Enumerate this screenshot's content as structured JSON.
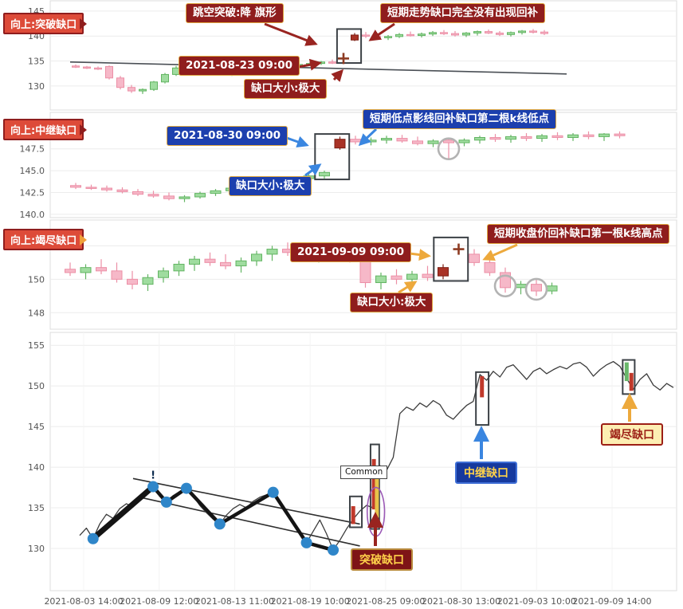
{
  "colors": {
    "bull_fill": "#9fdc9f",
    "bull_stroke": "#62b462",
    "bear_fill": "#f6b8c8",
    "bear_stroke": "#ec8fa6",
    "gap_candle": "#a93226",
    "gap_candle_stroke": "#7c1d12",
    "cross": "#8d3b22",
    "annotation_red": "#8f1d1d",
    "annotation_blue": "#1c3fae",
    "annotation_orange": "#eda93c",
    "line": "#3c3c3c",
    "dot": "#2f86c9",
    "grid": "#ececec",
    "axis_text": "#555555"
  },
  "chart_data": [
    {
      "type": "candlestick",
      "panel_tag": "向上:突破缺口",
      "ylim": [
        125.5,
        146.9
      ],
      "yticks": [
        145,
        140,
        135,
        130
      ],
      "ytick_labels": [
        "145",
        "140",
        "135",
        "130"
      ],
      "candles": [
        [
          134.0,
          134.3,
          133.6,
          133.8
        ],
        [
          133.8,
          134.0,
          133.4,
          133.6
        ],
        [
          133.6,
          133.9,
          133.2,
          133.4
        ],
        [
          133.9,
          134.1,
          131.3,
          131.6
        ],
        [
          131.6,
          132.0,
          129.3,
          129.7
        ],
        [
          129.7,
          130.2,
          128.6,
          129.0
        ],
        [
          129.0,
          129.5,
          128.4,
          129.3
        ],
        [
          129.3,
          131.0,
          129.0,
          130.8
        ],
        [
          130.8,
          132.6,
          130.5,
          132.3
        ],
        [
          132.3,
          134.0,
          132.0,
          133.6
        ],
        [
          133.6,
          134.2,
          133.2,
          133.9
        ],
        [
          133.9,
          134.1,
          133.0,
          133.2
        ],
        [
          133.2,
          133.6,
          132.6,
          132.9
        ],
        [
          132.9,
          133.3,
          132.2,
          132.5
        ],
        [
          132.5,
          133.0,
          132.0,
          132.8
        ],
        [
          132.8,
          133.5,
          132.5,
          133.2
        ],
        [
          133.2,
          133.8,
          132.9,
          133.5
        ],
        [
          133.5,
          134.0,
          133.1,
          133.3
        ],
        [
          133.3,
          133.9,
          133.0,
          133.7
        ],
        [
          133.7,
          134.4,
          133.4,
          134.1
        ],
        [
          134.1,
          134.6,
          133.8,
          134.3
        ],
        [
          134.3,
          134.8,
          134.0,
          134.5
        ],
        [
          134.5,
          135.0,
          134.2,
          134.8
        ],
        [
          134.8,
          135.3,
          134.4,
          134.6
        ],
        [
          135.4,
          135.9,
          135.1,
          135.5
        ],
        [
          139.2,
          140.6,
          139.0,
          140.2
        ],
        [
          140.2,
          140.8,
          139.6,
          140.0
        ],
        [
          140.0,
          140.5,
          139.4,
          139.7
        ],
        [
          139.7,
          140.2,
          139.2,
          139.9
        ],
        [
          139.9,
          140.6,
          139.6,
          140.3
        ],
        [
          140.3,
          140.9,
          139.9,
          140.1
        ],
        [
          140.1,
          140.7,
          139.7,
          140.4
        ],
        [
          140.4,
          141.0,
          140.0,
          140.7
        ],
        [
          140.7,
          141.2,
          140.2,
          140.5
        ],
        [
          140.5,
          141.0,
          139.9,
          140.2
        ],
        [
          140.2,
          140.8,
          139.8,
          140.6
        ],
        [
          140.6,
          141.1,
          140.1,
          140.9
        ],
        [
          140.9,
          141.3,
          140.4,
          140.6
        ],
        [
          140.6,
          141.0,
          140.0,
          140.3
        ],
        [
          140.3,
          140.9,
          139.9,
          140.7
        ],
        [
          140.7,
          141.2,
          140.3,
          141.0
        ],
        [
          141.0,
          141.4,
          140.5,
          140.8
        ],
        [
          140.8,
          141.2,
          140.2,
          140.5
        ]
      ],
      "highlight_index": 25,
      "hidden_indices": [
        24
      ],
      "cross_markers": [
        {
          "i": 24,
          "v": 135.5
        }
      ],
      "gap_box": {
        "i1": 24,
        "i2": 25,
        "v1": 134.6,
        "v2": 141.4
      },
      "trend_line": {
        "i1": -0.5,
        "v1": 134.8,
        "i2": 44,
        "v2": 132.4
      },
      "annotations": {
        "pattern": "跳空突破:降 旗形",
        "note": "短期走势缺口完全没有出现回补",
        "timestamp": "2021-08-23 09:00",
        "gap_size": "缺口大小:极大"
      }
    },
    {
      "type": "candlestick",
      "panel_tag": "向上:中继缺口",
      "ylim": [
        139.9,
        151.4
      ],
      "yticks": [
        147.5,
        145.0,
        142.5,
        140.0
      ],
      "ytick_labels": [
        "147.5",
        "145.0",
        "142.5",
        "140.0"
      ],
      "candles": [
        [
          143.3,
          143.6,
          142.9,
          143.1
        ],
        [
          143.1,
          143.4,
          142.8,
          143.0
        ],
        [
          143.0,
          143.3,
          142.6,
          142.8
        ],
        [
          142.8,
          143.1,
          142.4,
          142.6
        ],
        [
          142.6,
          142.9,
          142.1,
          142.3
        ],
        [
          142.3,
          142.7,
          141.9,
          142.1
        ],
        [
          142.1,
          142.5,
          141.6,
          141.8
        ],
        [
          141.8,
          142.2,
          141.4,
          142.0
        ],
        [
          142.0,
          142.6,
          141.8,
          142.4
        ],
        [
          142.4,
          142.9,
          142.1,
          142.7
        ],
        [
          142.7,
          143.2,
          142.4,
          143.0
        ],
        [
          143.0,
          143.5,
          142.7,
          143.3
        ],
        [
          143.3,
          143.8,
          143.0,
          143.6
        ],
        [
          143.6,
          144.1,
          143.3,
          143.9
        ],
        [
          143.9,
          144.3,
          143.5,
          144.1
        ],
        [
          144.1,
          144.6,
          143.8,
          144.4
        ],
        [
          144.4,
          145.0,
          144.1,
          144.8
        ],
        [
          147.6,
          148.9,
          147.4,
          148.6
        ],
        [
          148.6,
          149.0,
          148.0,
          148.3
        ],
        [
          148.3,
          148.8,
          147.9,
          148.5
        ],
        [
          148.5,
          149.0,
          148.1,
          148.7
        ],
        [
          148.7,
          149.1,
          148.2,
          148.4
        ],
        [
          148.4,
          148.9,
          147.9,
          148.1
        ],
        [
          148.1,
          148.6,
          147.7,
          148.4
        ],
        [
          148.5,
          148.8,
          146.4,
          148.2
        ],
        [
          148.2,
          148.7,
          147.8,
          148.5
        ],
        [
          148.5,
          149.0,
          148.1,
          148.8
        ],
        [
          148.8,
          149.2,
          148.3,
          148.6
        ],
        [
          148.6,
          149.1,
          148.2,
          148.9
        ],
        [
          148.9,
          149.3,
          148.4,
          148.7
        ],
        [
          148.7,
          149.2,
          148.3,
          149.0
        ],
        [
          149.0,
          149.4,
          148.5,
          148.8
        ],
        [
          148.8,
          149.3,
          148.4,
          149.1
        ],
        [
          149.1,
          149.5,
          148.6,
          148.9
        ],
        [
          148.9,
          149.3,
          148.4,
          149.2
        ],
        [
          149.2,
          149.5,
          148.7,
          149.0
        ]
      ],
      "highlight_index": 17,
      "gap_box": {
        "i1": 16,
        "i2": 17,
        "v1": 144.0,
        "v2": 149.2
      },
      "circles": [
        {
          "i": 24,
          "v": 147.5
        }
      ],
      "annotations": {
        "note": "短期低点影线回补缺口第二根k线低点",
        "timestamp": "2021-08-30 09:00",
        "gap_size": "缺口大小:极大"
      }
    },
    {
      "type": "candlestick",
      "panel_tag": "向上:竭尽缺口",
      "ylim": [
        147.3,
        153.4
      ],
      "yticks": [
        152,
        150,
        148
      ],
      "ytick_labels": [
        "152",
        "150",
        "148"
      ],
      "candles": [
        [
          150.6,
          151.0,
          150.2,
          150.4
        ],
        [
          150.4,
          150.9,
          150.0,
          150.7
        ],
        [
          150.7,
          151.2,
          150.3,
          150.5
        ],
        [
          150.5,
          151.0,
          149.8,
          150.0
        ],
        [
          150.0,
          150.5,
          149.4,
          149.7
        ],
        [
          149.7,
          150.3,
          149.3,
          150.1
        ],
        [
          150.1,
          150.7,
          149.8,
          150.5
        ],
        [
          150.5,
          151.1,
          150.2,
          150.9
        ],
        [
          150.9,
          151.4,
          150.5,
          151.2
        ],
        [
          151.2,
          151.6,
          150.8,
          151.0
        ],
        [
          151.0,
          151.5,
          150.6,
          150.8
        ],
        [
          150.8,
          151.3,
          150.4,
          151.1
        ],
        [
          151.1,
          151.7,
          150.8,
          151.5
        ],
        [
          151.5,
          152.0,
          151.1,
          151.8
        ],
        [
          151.8,
          152.2,
          151.4,
          151.6
        ],
        [
          151.6,
          152.1,
          151.2,
          151.4
        ],
        [
          151.4,
          151.9,
          151.0,
          151.7
        ],
        [
          151.7,
          152.1,
          151.3,
          151.5
        ],
        [
          151.5,
          152.0,
          151.0,
          151.2
        ],
        [
          151.2,
          151.5,
          149.5,
          149.8
        ],
        [
          149.8,
          150.4,
          149.4,
          150.2
        ],
        [
          150.2,
          150.6,
          149.7,
          150.0
        ],
        [
          150.0,
          150.5,
          149.6,
          150.3
        ],
        [
          150.3,
          150.8,
          149.9,
          150.1
        ],
        [
          150.2,
          150.9,
          150.0,
          150.7
        ],
        [
          151.8,
          152.2,
          151.6,
          151.8
        ],
        [
          151.5,
          151.8,
          150.8,
          151.0
        ],
        [
          151.0,
          151.3,
          150.2,
          150.4
        ],
        [
          150.4,
          150.7,
          149.2,
          149.5
        ],
        [
          149.5,
          149.9,
          149.1,
          149.7
        ],
        [
          149.7,
          150.0,
          149.0,
          149.3
        ],
        [
          149.3,
          149.8,
          149.1,
          149.6
        ]
      ],
      "highlight_index": 24,
      "hidden_indices": [
        25
      ],
      "cross_markers": [
        {
          "i": 25,
          "v": 151.8
        }
      ],
      "gap_box": {
        "i1": 24,
        "i2": 25,
        "v1": 149.9,
        "v2": 152.5
      },
      "circles": [
        {
          "i": 28,
          "v": 149.6
        },
        {
          "i": 30,
          "v": 149.4
        }
      ],
      "annotations": {
        "note": "短期收盘价回补缺口第一根k线高点",
        "timestamp": "2021-09-09 09:00",
        "gap_size": "缺口大小:极大"
      }
    },
    {
      "type": "line",
      "ylim": [
        124.8,
        156.0
      ],
      "yticks": [
        155,
        150,
        145,
        140,
        135,
        130
      ],
      "ytick_labels": [
        "155",
        "150",
        "145",
        "140",
        "135",
        "130"
      ],
      "x_labels": [
        "2021-08-03 14:00",
        "2021-08-09 12:00",
        "2021-08-13 11:00",
        "2021-08-19 10:00",
        "2021-08-25 09:00",
        "2021-08-30 13:00",
        "2021-09-03 10:00",
        "2021-09-09 14:00"
      ],
      "values": [
        131.6,
        132.5,
        131.2,
        133.0,
        134.2,
        133.7,
        134.9,
        135.5,
        135.1,
        136.2,
        137.0,
        137.6,
        136.4,
        135.7,
        136.5,
        137.0,
        137.4,
        136.5,
        135.3,
        134.4,
        133.6,
        133.0,
        134.1,
        134.9,
        135.4,
        135.0,
        135.8,
        136.3,
        136.6,
        136.9,
        135.5,
        134.3,
        133.2,
        131.9,
        130.7,
        132.1,
        133.5,
        131.8,
        129.8,
        131.0,
        132.4,
        133.6,
        134.6,
        135.3,
        135.0,
        140.2,
        139.6,
        141.2,
        146.6,
        147.4,
        147.0,
        147.9,
        147.4,
        148.2,
        147.7,
        146.4,
        145.9,
        146.8,
        147.6,
        148.1,
        151.4,
        150.7,
        151.8,
        151.1,
        152.3,
        152.6,
        151.7,
        150.8,
        151.8,
        152.2,
        151.5,
        152.0,
        152.4,
        152.1,
        152.7,
        152.9,
        152.3,
        151.2,
        152.0,
        152.6,
        153.0,
        152.4,
        150.9,
        149.6,
        150.8,
        151.5,
        150.1,
        149.5,
        150.3,
        149.8
      ],
      "dots": [
        2,
        11,
        13,
        16,
        21,
        29,
        34,
        38
      ],
      "alert_dot": 11,
      "alert_glyph": "!",
      "thick_segments": [
        [
          2,
          11
        ],
        [
          11,
          13
        ],
        [
          13,
          16
        ],
        [
          16,
          21
        ],
        [
          21,
          29
        ],
        [
          29,
          34
        ],
        [
          34,
          38
        ]
      ],
      "channel_lines": [
        {
          "i1": 8,
          "v1": 138.6,
          "i2": 42,
          "v2": 133.0
        },
        {
          "i1": 9,
          "v1": 136.3,
          "i2": 42,
          "v2": 130.3
        }
      ],
      "gap_boxes": [
        {
          "i1": 40.5,
          "i2": 42.3,
          "v1": 132.6,
          "v2": 136.4
        },
        {
          "i1": 43.6,
          "i2": 44.9,
          "v1": 132.4,
          "v2": 142.8
        },
        {
          "i1": 59.4,
          "i2": 61.3,
          "v1": 145.2,
          "v2": 151.7
        },
        {
          "i1": 81.4,
          "i2": 83.2,
          "v1": 149.0,
          "v2": 153.2
        }
      ],
      "mini_bars": [
        {
          "i": 41.0,
          "v1": 133.0,
          "v2": 135.2,
          "color": "#c0392b"
        },
        {
          "i": 44.1,
          "v1": 134.8,
          "v2": 141.0,
          "color": "#c0392b"
        },
        {
          "i": 44.55,
          "v1": 133.8,
          "v2": 140.0,
          "color": "#e7c34a"
        },
        {
          "i": 60.3,
          "v1": 148.6,
          "v2": 151.2,
          "color": "#c0392b"
        },
        {
          "i": 82.0,
          "v1": 150.6,
          "v2": 152.9,
          "color": "#69b76a"
        },
        {
          "i": 82.7,
          "v1": 149.4,
          "v2": 151.6,
          "color": "#c0392b"
        }
      ],
      "ellipse": {
        "i": 44.4,
        "v": 134.5,
        "ri": 1.3,
        "rv": 3.0
      },
      "labels": {
        "common": "Common",
        "breakout": "突破缺口",
        "continuation": "中继缺口",
        "exhaustion": "竭尽缺口"
      }
    }
  ]
}
